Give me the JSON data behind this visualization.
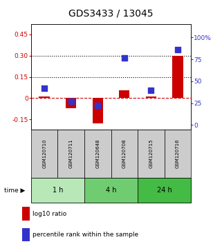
{
  "title": "GDS3433 / 13045",
  "samples": [
    "GSM120710",
    "GSM120711",
    "GSM120648",
    "GSM120708",
    "GSM120715",
    "GSM120716"
  ],
  "log10_ratio": [
    0.01,
    -0.07,
    -0.18,
    0.055,
    0.01,
    0.3
  ],
  "percentile_rank": [
    42,
    27,
    22,
    77,
    40,
    86
  ],
  "groups": [
    {
      "label": "1 h",
      "indices": [
        0,
        1
      ],
      "color": "#b8e8b8"
    },
    {
      "label": "4 h",
      "indices": [
        2,
        3
      ],
      "color": "#70cc70"
    },
    {
      "label": "24 h",
      "indices": [
        4,
        5
      ],
      "color": "#44bb44"
    }
  ],
  "ylim_left": [
    -0.22,
    0.52
  ],
  "ylim_right": [
    -5,
    115
  ],
  "yticks_left": [
    -0.15,
    0.0,
    0.15,
    0.3,
    0.45
  ],
  "yticks_right": [
    0,
    25,
    50,
    75,
    100
  ],
  "ytick_labels_left": [
    "-0.15",
    "0",
    "0.15",
    "0.30",
    "0.45"
  ],
  "ytick_labels_right": [
    "0",
    "25",
    "50",
    "75",
    "100%"
  ],
  "hlines": [
    0.15,
    0.3
  ],
  "bar_color_red": "#cc0000",
  "dot_color_blue": "#3333cc",
  "dashed_line_color": "#cc0000",
  "bar_width": 0.4,
  "dot_size": 30,
  "legend_items": [
    {
      "color": "#cc0000",
      "label": "log10 ratio"
    },
    {
      "color": "#3333cc",
      "label": "percentile rank within the sample"
    }
  ],
  "sample_box_color": "#cccccc",
  "sample_box_edge": "#000000",
  "title_fontsize": 10,
  "tick_fontsize": 6.5,
  "legend_fontsize": 6.5
}
